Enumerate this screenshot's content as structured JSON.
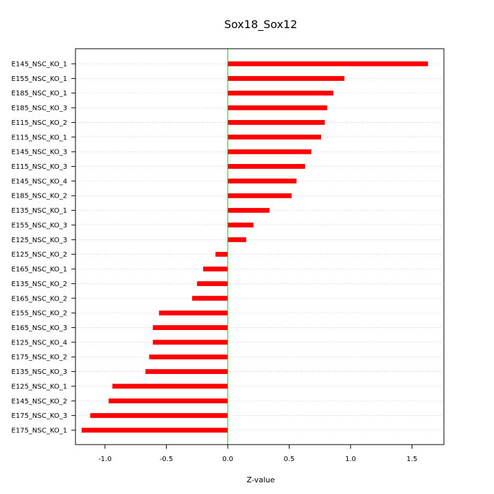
{
  "chart_data": {
    "type": "bar",
    "orientation": "horizontal",
    "title": "Sox18_Sox12",
    "xlabel": "Z-value",
    "ylabel": "",
    "xlim": [
      -1.24,
      1.76
    ],
    "xticks": [
      "-1.0",
      "-0.5",
      "0.0",
      "0.5",
      "1.0",
      "1.5"
    ],
    "grid": "horizontal dotted lines at each category",
    "reference_line": {
      "x": 0.0,
      "color": "#00cc00"
    },
    "bar_color": "#ff0000",
    "categories": [
      "E145_NSC_KO_1",
      "E155_NSC_KO_1",
      "E185_NSC_KO_1",
      "E185_NSC_KO_3",
      "E115_NSC_KO_2",
      "E115_NSC_KO_1",
      "E145_NSC_KO_3",
      "E115_NSC_KO_3",
      "E145_NSC_KO_4",
      "E185_NSC_KO_2",
      "E135_NSC_KO_1",
      "E155_NSC_KO_3",
      "E125_NSC_KO_3",
      "E125_NSC_KO_2",
      "E165_NSC_KO_1",
      "E135_NSC_KO_2",
      "E165_NSC_KO_2",
      "E155_NSC_KO_2",
      "E165_NSC_KO_3",
      "E125_NSC_KO_4",
      "E175_NSC_KO_2",
      "E135_NSC_KO_3",
      "E125_NSC_KO_1",
      "E145_NSC_KO_2",
      "E175_NSC_KO_3",
      "E175_NSC_KO_1"
    ],
    "values": [
      1.63,
      0.95,
      0.86,
      0.81,
      0.79,
      0.76,
      0.68,
      0.63,
      0.56,
      0.52,
      0.34,
      0.21,
      0.15,
      -0.1,
      -0.2,
      -0.25,
      -0.29,
      -0.56,
      -0.61,
      -0.61,
      -0.64,
      -0.67,
      -0.94,
      -0.97,
      -1.12,
      -1.19
    ]
  }
}
